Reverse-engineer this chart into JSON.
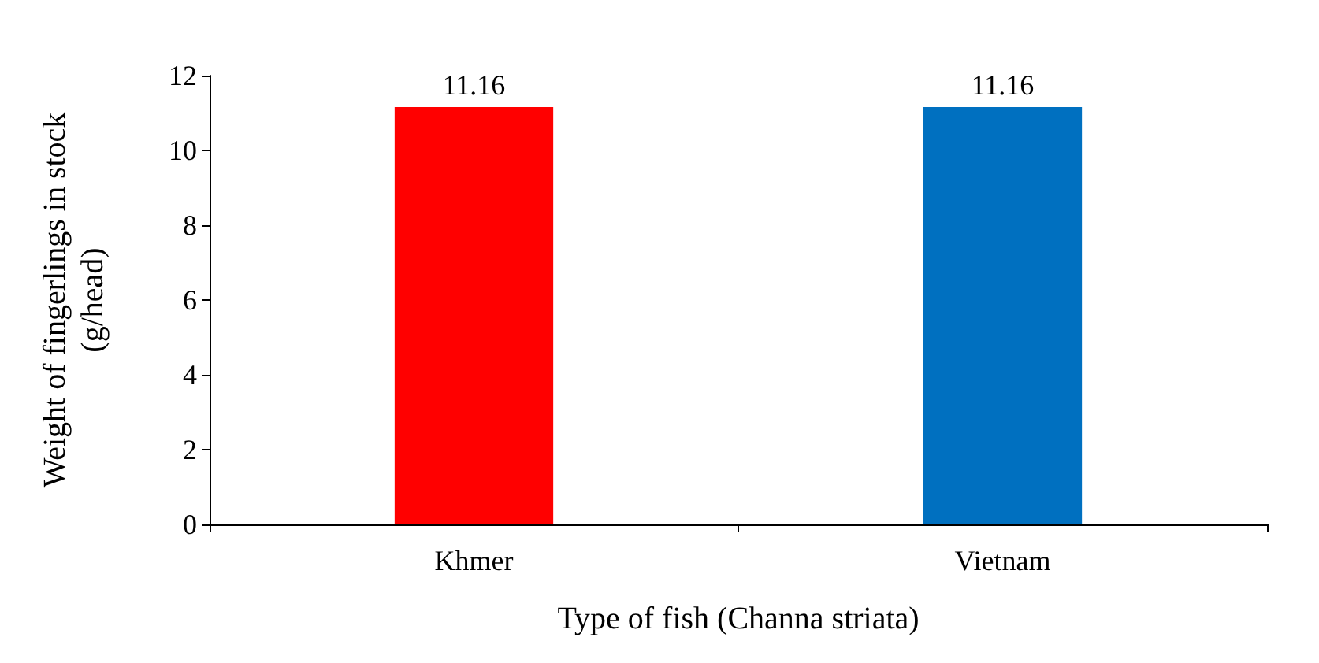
{
  "chart_data": {
    "type": "bar",
    "xlabel": "Type of fish (Channa striata)",
    "ylabel": "Weight of fingerlings in stock\n(g/head)",
    "categories": [
      "Khmer",
      "Vietnam"
    ],
    "values": [
      11.16,
      11.16
    ],
    "colors": [
      "#ff0000",
      "#0070c0"
    ],
    "ylim": [
      0,
      12
    ],
    "yticks": [
      0,
      2,
      4,
      6,
      8,
      10,
      12
    ],
    "grid": false,
    "data_labels": true
  }
}
